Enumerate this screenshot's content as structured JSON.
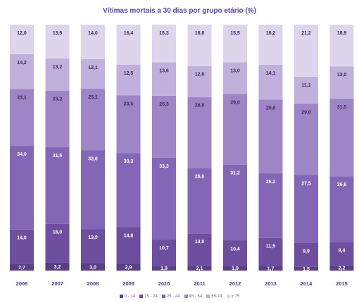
{
  "chart_data": {
    "type": "bar",
    "stacked": true,
    "normalized": true,
    "title": "Vítimas mortais a 30 dias por grupo etário (%)",
    "xlabel": "",
    "ylabel": "",
    "ylim": [
      0,
      100
    ],
    "legend_position": "bottom",
    "categories": [
      "2006",
      "2007",
      "2008",
      "2009",
      "2010",
      "2011",
      "2012",
      "2013",
      "2014",
      "2015"
    ],
    "series": [
      {
        "name": "0 - 14",
        "color": "#5b3f86",
        "values": [
          "2,7",
          "3,2",
          "3,0",
          "2,9",
          "1,9",
          "2,1",
          "1,9",
          "1,7",
          "1,5",
          "2,2"
        ]
      },
      {
        "name": "15 - 24",
        "color": "#6e4f9f",
        "values": [
          "14,0",
          "16,0",
          "13,9",
          "14,8",
          "10,7",
          "13,0",
          "10,4",
          "11,5",
          "9,9",
          "9,4"
        ]
      },
      {
        "name": "25 - 44",
        "color": "#8366b6",
        "values": [
          "34,0",
          "31,5",
          "32,0",
          "30,3",
          "33,3",
          "26,6",
          "31,2",
          "26,2",
          "27,5",
          "26,6"
        ]
      },
      {
        "name": "45 - 64",
        "color": "#9d85c6",
        "values": [
          "23,1",
          "23,2",
          "25,1",
          "23,5",
          "25,3",
          "28,8",
          "29,0",
          "29,8",
          "29,0",
          "31,5"
        ]
      },
      {
        "name": "65-74",
        "color": "#bfb1dc",
        "values": [
          "14,2",
          "13,2",
          "12,1",
          "12,5",
          "13,6",
          "12,6",
          "13,0",
          "14,1",
          "11,1",
          "13,0"
        ]
      },
      {
        "name": "≥ 75",
        "color": "#ddd5ec",
        "values": [
          "12,0",
          "13,9",
          "14,0",
          "16,4",
          "15,3",
          "16,8",
          "15,5",
          "16,2",
          "21,2",
          "16,9"
        ]
      }
    ]
  }
}
